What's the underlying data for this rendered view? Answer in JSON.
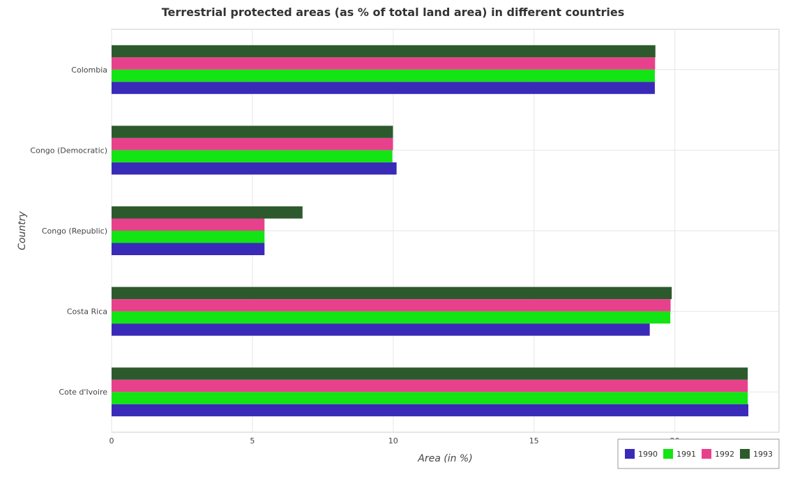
{
  "chart_data": {
    "type": "bar",
    "orientation": "horizontal",
    "title": "Terrestrial protected areas (as % of total land area) in different countries",
    "xlabel": "Area (in %)",
    "ylabel": "Country",
    "categories": [
      "Colombia",
      "Congo (Democratic)",
      "Congo (Republic)",
      "Costa Rica",
      "Cote d'Ivoire"
    ],
    "xlim": [
      0,
      23.7
    ],
    "xticks": [
      0,
      5,
      10,
      15,
      20
    ],
    "grid": true,
    "legend_position": "bottom-right",
    "series": [
      {
        "name": "1990",
        "color": "#3a2ab8",
        "values": [
          19.29,
          10.12,
          5.43,
          19.11,
          22.61
        ]
      },
      {
        "name": "1991",
        "color": "#13e413",
        "values": [
          19.29,
          9.97,
          5.43,
          19.84,
          22.59
        ]
      },
      {
        "name": "1992",
        "color": "#e8418c",
        "values": [
          19.3,
          9.99,
          5.43,
          19.85,
          22.59
        ]
      },
      {
        "name": "1993",
        "color": "#2d5a2d",
        "values": [
          19.31,
          9.99,
          6.78,
          19.89,
          22.59
        ]
      }
    ]
  }
}
